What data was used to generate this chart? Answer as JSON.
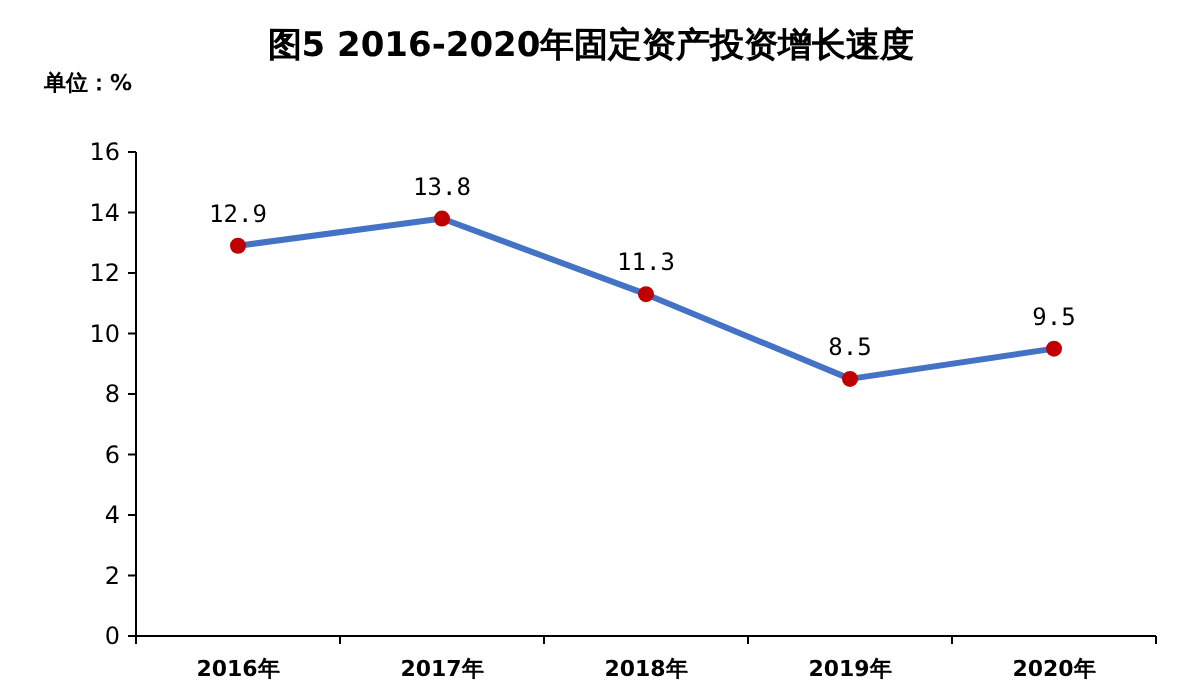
{
  "chart_data": {
    "type": "line",
    "title": "图5  2016-2020年固定资产投资增长速度",
    "ylabel": "单位：%",
    "categories": [
      "2016年",
      "2017年",
      "2018年",
      "2019年",
      "2020年"
    ],
    "values": [
      12.9,
      13.8,
      11.3,
      8.5,
      9.5
    ],
    "color": "#4472c4",
    "colors": [
      "#c00000",
      "#c00000",
      "#c00000",
      "#c00000",
      "#c00000"
    ],
    "ylim": [
      0,
      16
    ],
    "yticks": [
      0,
      2,
      4,
      6,
      8,
      10,
      12,
      14,
      16
    ],
    "data_labels": true,
    "marker": "circle",
    "grid": false
  }
}
